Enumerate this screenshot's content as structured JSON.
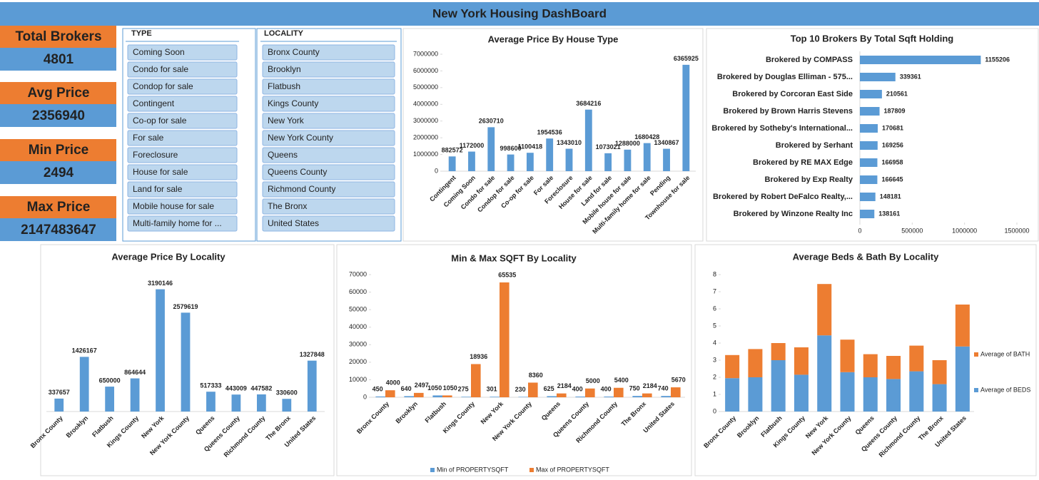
{
  "header": {
    "title": "New York Housing DashBoard"
  },
  "kpis": [
    {
      "label": "Total Brokers",
      "value": 4801
    },
    {
      "label": "Avg Price",
      "value": 2356940
    },
    {
      "label": "Min Price",
      "value": 2494
    },
    {
      "label": "Max Price",
      "value": 2147483647
    }
  ],
  "slicers": [
    {
      "title": "TYPE",
      "items": [
        "Coming Soon",
        "Condo for sale",
        "Condop for sale",
        "Contingent",
        "Co-op for sale",
        "For sale",
        "Foreclosure",
        "House for sale",
        "Land for sale",
        "Mobile house for sale",
        "Multi-family home for ..."
      ]
    },
    {
      "title": "LOCALITY",
      "items": [
        "Bronx County",
        "Brooklyn",
        "Flatbush",
        "Kings County",
        "New York",
        "New York County",
        "Queens",
        "Queens County",
        "Richmond County",
        "The Bronx",
        "United States"
      ]
    }
  ],
  "chart_data": [
    {
      "type": "bar",
      "title": "Average Price By House Type",
      "categories": [
        "Contingent",
        "Coming Soon",
        "Condo for sale",
        "Condop for sale",
        "Co-op for sale",
        "For sale",
        "Foreclosure",
        "House for sale",
        "Land for sale",
        "Mobile house for sale",
        "Multi-family home for sale",
        "Pending",
        "Townhouse for sale"
      ],
      "values": [
        882572,
        1172000,
        2630710,
        998600,
        1100418,
        1954536,
        1343010,
        3684216,
        1073021,
        1288000,
        1680428,
        1340867,
        6365925
      ],
      "color": "#5b9bd5",
      "ylim": [
        0,
        7000000
      ],
      "yticks": [
        0,
        1000000,
        2000000,
        3000000,
        4000000,
        5000000,
        6000000,
        7000000
      ]
    },
    {
      "type": "barh",
      "title": "Top 10 Brokers By Total Sqft Holding",
      "categories": [
        "Brokered by COMPASS",
        "Brokered by Douglas Elliman - 575...",
        "Brokered by Corcoran East Side",
        "Brokered by Brown Harris Stevens",
        "Brokered by Sotheby's International...",
        "Brokered by Serhant",
        "Brokered by RE MAX Edge",
        "Brokered by Exp Realty",
        "Brokered by Robert DeFalco Realty,...",
        "Brokered by Winzone Realty Inc"
      ],
      "values": [
        1155206,
        339361,
        210561,
        187809,
        170681,
        169256,
        166958,
        166645,
        148181,
        138161
      ],
      "color": "#5b9bd5",
      "xlim": [
        0,
        1500000
      ],
      "xticks": [
        0,
        500000,
        1000000,
        1500000
      ]
    },
    {
      "type": "bar",
      "title": "Average Price By Locality",
      "categories": [
        "Bronx County",
        "Brooklyn",
        "Flatbush",
        "Kings County",
        "New York",
        "New York County",
        "Queens",
        "Queens County",
        "Richmond County",
        "The Bronx",
        "United States"
      ],
      "values": [
        337657,
        1426167,
        650000,
        864644,
        3190146,
        2579619,
        517333,
        443009,
        447582,
        330600,
        1327848
      ],
      "color": "#5b9bd5"
    },
    {
      "type": "bar",
      "title": "Min & Max SQFT By Locality",
      "categories": [
        "Bronx County",
        "Brooklyn",
        "Flatbush",
        "Kings County",
        "New York",
        "New York County",
        "Queens",
        "Queens County",
        "Richmond County",
        "The Bronx",
        "United States"
      ],
      "series": [
        {
          "name": "Min of PROPERTYSQFT",
          "color": "#5b9bd5",
          "values": [
            450,
            640,
            1050,
            275,
            301,
            230,
            625,
            400,
            400,
            750,
            740
          ]
        },
        {
          "name": "Max of PROPERTYSQFT",
          "color": "#ed7d31",
          "values": [
            4000,
            2497,
            1050,
            18936,
            65535,
            8360,
            2184,
            5000,
            5400,
            2184,
            5670
          ]
        }
      ],
      "ylim": [
        0,
        70000
      ],
      "yticks": [
        0,
        10000,
        20000,
        30000,
        40000,
        50000,
        60000,
        70000
      ],
      "legend": "bottom"
    },
    {
      "type": "stacked_bar",
      "title": "Average Beds & Bath By Locality",
      "categories": [
        "Bronx County",
        "Brooklyn",
        "Flatbush",
        "Kings County",
        "New York",
        "New York County",
        "Queens",
        "Queens County",
        "Richmond County",
        "The Bronx",
        "United States"
      ],
      "series": [
        {
          "name": "Average of BEDS",
          "color": "#5b9bd5",
          "values": [
            1.95,
            2.0,
            3.0,
            2.15,
            4.45,
            2.3,
            2.0,
            1.9,
            2.35,
            1.6,
            3.8
          ]
        },
        {
          "name": "Average of BATH",
          "color": "#ed7d31",
          "values": [
            1.35,
            1.65,
            1.0,
            1.6,
            3.0,
            1.9,
            1.35,
            1.35,
            1.5,
            1.4,
            2.45
          ]
        }
      ],
      "ylim": [
        0,
        8
      ],
      "yticks": [
        0,
        1,
        2,
        3,
        4,
        5,
        6,
        7,
        8
      ],
      "legend": "right"
    }
  ]
}
